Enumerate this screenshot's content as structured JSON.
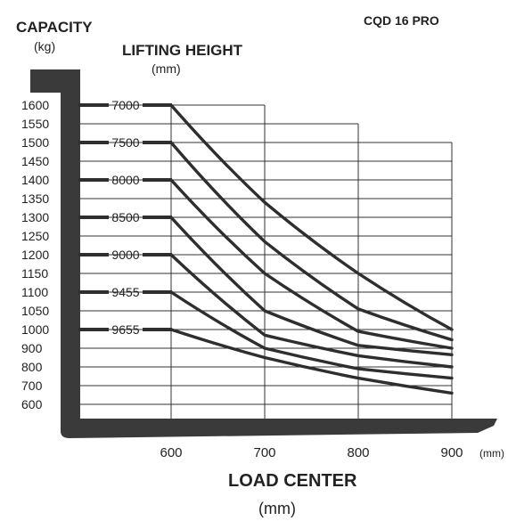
{
  "chart_data": {
    "type": "line",
    "title": "CQD 16 PRO",
    "ylabel": "CAPACITY",
    "ylabel_unit": "(kg)",
    "xlabel": "LOAD CENTER",
    "xlabel_unit": "(mm)",
    "x_unit_note": "(mm)",
    "series_header": "LIFTING HEIGHT",
    "series_header_unit": "(mm)",
    "x_ticks": [
      600,
      700,
      800,
      900
    ],
    "y_ticks": [
      1600,
      1550,
      1500,
      1450,
      1400,
      1350,
      1300,
      1250,
      1200,
      1150,
      1100,
      1050,
      1000,
      900,
      800,
      700,
      600
    ],
    "x": [
      600,
      700,
      800,
      900
    ],
    "series": [
      {
        "name": "7000",
        "values": [
          1600,
          1340,
          1150,
          1000
        ]
      },
      {
        "name": "7500",
        "values": [
          1500,
          1235,
          1055,
          945
        ]
      },
      {
        "name": "8000",
        "values": [
          1400,
          1150,
          990,
          900
        ]
      },
      {
        "name": "8500",
        "values": [
          1300,
          1050,
          915,
          865
        ]
      },
      {
        "name": "9000",
        "values": [
          1200,
          970,
          860,
          800
        ]
      },
      {
        "name": "9455",
        "values": [
          1100,
          900,
          790,
          740
        ]
      },
      {
        "name": "9655",
        "values": [
          1000,
          850,
          740,
          660
        ]
      }
    ],
    "grid": true
  }
}
